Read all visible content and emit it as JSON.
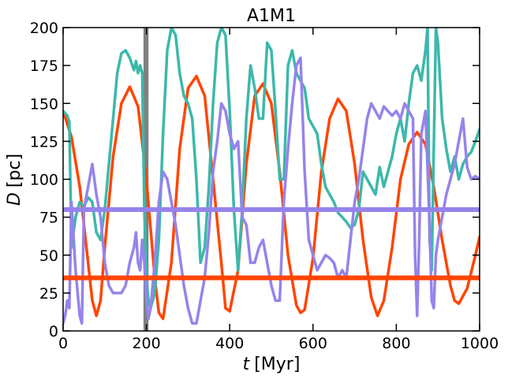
{
  "chart_data": {
    "type": "line",
    "title": "A1M1",
    "xlabel": {
      "var": "t",
      "unit": "[Myr]"
    },
    "ylabel": {
      "var": "D",
      "unit": "[pc]"
    },
    "xlim": [
      0,
      1000
    ],
    "ylim": [
      0,
      200
    ],
    "xticks": [
      0,
      200,
      400,
      600,
      800,
      1000
    ],
    "yticks": [
      0,
      25,
      50,
      75,
      100,
      125,
      150,
      175,
      200
    ],
    "grid": false,
    "colors": {
      "orange": "#ff4500",
      "teal": "#3cb8aa",
      "purple": "#9683ec",
      "gray_band": "#808080",
      "frame": "#000000"
    },
    "vertical_band": {
      "x_range": [
        193,
        205
      ]
    },
    "horizontal_lines": [
      {
        "y": 80,
        "color": "#9683ec"
      },
      {
        "y": 35,
        "color": "#ff4500"
      }
    ],
    "series": [
      {
        "color": "#ff4500",
        "x": [
          0,
          20,
          40,
          60,
          70,
          80,
          90,
          100,
          120,
          140,
          160,
          180,
          200,
          220,
          230,
          240,
          260,
          280,
          300,
          320,
          340,
          360,
          380,
          390,
          400,
          420,
          440,
          460,
          480,
          500,
          520,
          540,
          560,
          570,
          580,
          600,
          620,
          640,
          660,
          680,
          700,
          720,
          740,
          755,
          770,
          790,
          810,
          830,
          850,
          870,
          890,
          910,
          930,
          940,
          950,
          970,
          990,
          1000
        ],
        "y": [
          145,
          128,
          95,
          45,
          20,
          10,
          20,
          55,
          115,
          150,
          161,
          148,
          100,
          35,
          12,
          8,
          45,
          120,
          160,
          168,
          155,
          100,
          45,
          15,
          13,
          40,
          110,
          155,
          163,
          150,
          105,
          50,
          17,
          12,
          14,
          48,
          105,
          140,
          153,
          145,
          110,
          60,
          22,
          10,
          20,
          55,
          100,
          123,
          131,
          123,
          95,
          60,
          30,
          20,
          18,
          28,
          50,
          62
        ]
      },
      {
        "color": "#3cb8aa",
        "x": [
          0,
          10,
          15,
          20,
          30,
          40,
          50,
          60,
          70,
          80,
          90,
          100,
          110,
          120,
          130,
          140,
          150,
          160,
          170,
          175,
          180,
          185,
          190,
          195,
          200,
          205,
          210,
          220,
          230,
          240,
          250,
          260,
          270,
          280,
          290,
          300,
          310,
          320,
          330,
          340,
          350,
          360,
          370,
          380,
          390,
          400,
          410,
          420,
          430,
          440,
          450,
          460,
          470,
          480,
          490,
          500,
          510,
          520,
          530,
          540,
          550,
          560,
          570,
          580,
          590,
          600,
          610,
          620,
          630,
          640,
          650,
          660,
          670,
          680,
          690,
          700,
          710,
          720,
          730,
          740,
          750,
          760,
          770,
          780,
          790,
          800,
          810,
          820,
          830,
          840,
          850,
          860,
          870,
          875,
          880,
          885,
          890,
          895,
          900,
          910,
          920,
          930,
          940,
          950,
          960,
          970,
          980,
          990,
          1000
        ],
        "y": [
          145,
          142,
          138,
          55,
          75,
          85,
          82,
          88,
          85,
          65,
          60,
          80,
          110,
          140,
          170,
          183,
          185,
          180,
          172,
          178,
          170,
          175,
          170,
          80,
          35,
          20,
          15,
          25,
          60,
          130,
          185,
          200,
          195,
          170,
          155,
          150,
          140,
          100,
          45,
          55,
          95,
          150,
          190,
          200,
          195,
          145,
          80,
          40,
          80,
          140,
          175,
          160,
          140,
          140,
          190,
          185,
          145,
          100,
          100,
          175,
          185,
          170,
          165,
          160,
          140,
          135,
          130,
          110,
          95,
          90,
          85,
          78,
          75,
          72,
          68,
          70,
          80,
          105,
          100,
          95,
          90,
          108,
          95,
          105,
          115,
          130,
          140,
          125,
          150,
          170,
          175,
          165,
          185,
          200,
          60,
          40,
          120,
          200,
          190,
          140,
          120,
          105,
          115,
          100,
          110,
          115,
          118,
          125,
          133
        ]
      },
      {
        "color": "#9683ec",
        "x": [
          0,
          5,
          10,
          15,
          20,
          30,
          40,
          45,
          50,
          60,
          70,
          80,
          90,
          100,
          110,
          120,
          130,
          140,
          150,
          160,
          170,
          175,
          180,
          185,
          190,
          195,
          200,
          205,
          210,
          220,
          230,
          240,
          250,
          260,
          270,
          280,
          290,
          300,
          310,
          320,
          330,
          340,
          350,
          360,
          370,
          380,
          390,
          400,
          410,
          420,
          430,
          440,
          450,
          460,
          470,
          480,
          490,
          500,
          510,
          520,
          530,
          540,
          550,
          560,
          570,
          580,
          590,
          600,
          610,
          620,
          630,
          640,
          650,
          660,
          670,
          680,
          690,
          700,
          710,
          720,
          730,
          740,
          750,
          760,
          770,
          780,
          790,
          800,
          810,
          820,
          830,
          840,
          845,
          850,
          855,
          860,
          870,
          880,
          885,
          890,
          895,
          900,
          910,
          920,
          930,
          940,
          950,
          960,
          970,
          980,
          990,
          1000
        ],
        "y": [
          5,
          10,
          20,
          15,
          85,
          40,
          10,
          5,
          80,
          95,
          110,
          90,
          75,
          45,
          30,
          25,
          25,
          25,
          30,
          45,
          55,
          65,
          45,
          40,
          60,
          45,
          20,
          8,
          15,
          45,
          85,
          105,
          100,
          85,
          70,
          50,
          30,
          15,
          5,
          5,
          20,
          35,
          65,
          105,
          125,
          150,
          145,
          130,
          120,
          125,
          75,
          70,
          45,
          45,
          55,
          60,
          45,
          30,
          20,
          20,
          85,
          120,
          150,
          175,
          180,
          105,
          60,
          50,
          40,
          45,
          50,
          48,
          45,
          35,
          40,
          35,
          60,
          85,
          100,
          120,
          140,
          150,
          145,
          140,
          148,
          145,
          142,
          145,
          140,
          150,
          145,
          140,
          50,
          10,
          60,
          130,
          145,
          70,
          20,
          15,
          50,
          60,
          75,
          90,
          100,
          110,
          125,
          140,
          108,
          100,
          102,
          100
        ]
      }
    ]
  }
}
